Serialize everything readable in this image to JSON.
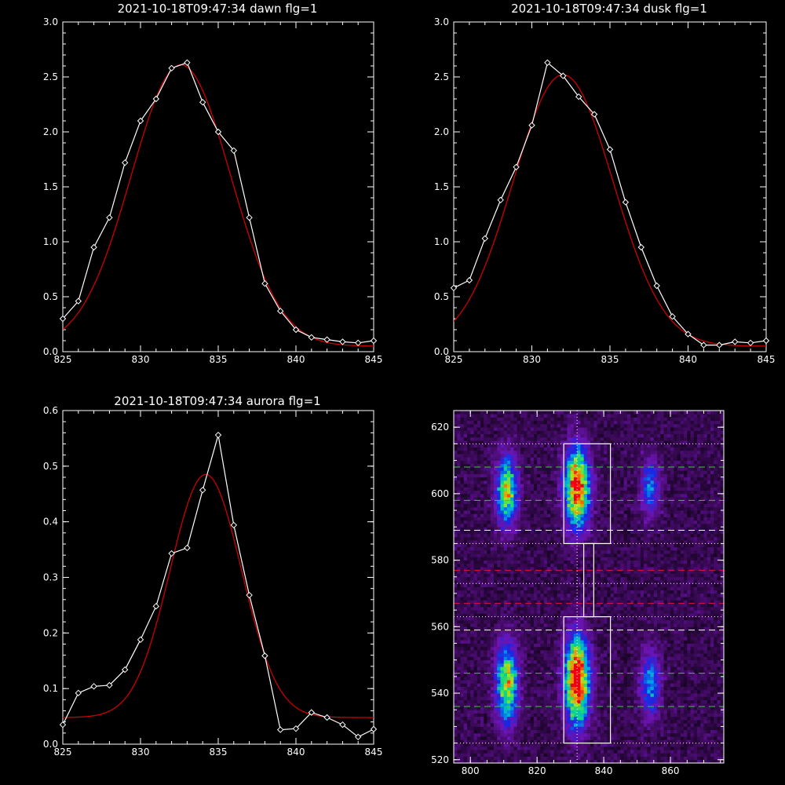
{
  "colors": {
    "background": "#000000",
    "data_line": "#ffffff",
    "fit_line": "#cc0000",
    "green_line": "#33cc33",
    "red_line": "#e0103a"
  },
  "chart_data": [
    {
      "type": "line",
      "title": "2021-10-18T09:47:34 dawn flg=1",
      "xlim": [
        825,
        845
      ],
      "ylim": [
        0,
        3
      ],
      "xticks": [
        "825",
        "830",
        "835",
        "840",
        "845"
      ],
      "yticks": [
        "0.0",
        "0.5",
        "1.0",
        "1.5",
        "2.0",
        "2.5",
        "3.0"
      ],
      "xticks_values": [
        825,
        830,
        835,
        840,
        845
      ],
      "yticks_values": [
        0,
        0.5,
        1,
        1.5,
        2,
        2.5,
        3
      ],
      "grid": false,
      "series": [
        {
          "style": "data-diamond",
          "color": "#ffffff",
          "x": [
            825,
            826,
            827,
            828,
            829,
            830,
            831,
            832,
            833,
            834,
            835,
            836,
            837,
            838,
            839,
            840,
            841,
            842,
            843,
            844,
            845
          ],
          "y": [
            0.3,
            0.46,
            0.95,
            1.22,
            1.72,
            2.1,
            2.3,
            2.58,
            2.63,
            2.27,
            2.0,
            1.83,
            1.22,
            0.62,
            0.37,
            0.2,
            0.13,
            0.11,
            0.09,
            0.08,
            0.1
          ]
        },
        {
          "style": "fit",
          "color": "#cc0000",
          "gaussian": {
            "amplitude": 2.56,
            "center": 832.6,
            "sigma": 3.2,
            "offset": 0.05
          }
        }
      ]
    },
    {
      "type": "line",
      "title": "2021-10-18T09:47:34 dusk flg=1",
      "xlim": [
        825,
        845
      ],
      "ylim": [
        0,
        3
      ],
      "xticks": [
        "825",
        "830",
        "835",
        "840",
        "845"
      ],
      "yticks": [
        "0.0",
        "0.5",
        "1.0",
        "1.5",
        "2.0",
        "2.5",
        "3.0"
      ],
      "xticks_values": [
        825,
        830,
        835,
        840,
        845
      ],
      "yticks_values": [
        0,
        0.5,
        1,
        1.5,
        2,
        2.5,
        3
      ],
      "grid": false,
      "series": [
        {
          "style": "data-diamond",
          "color": "#ffffff",
          "x": [
            825,
            826,
            827,
            828,
            829,
            830,
            831,
            832,
            833,
            834,
            835,
            836,
            837,
            838,
            839,
            840,
            841,
            842,
            843,
            844,
            845
          ],
          "y": [
            0.58,
            0.65,
            1.03,
            1.38,
            1.68,
            2.06,
            2.63,
            2.51,
            2.32,
            2.16,
            1.84,
            1.36,
            0.95,
            0.6,
            0.32,
            0.16,
            0.06,
            0.06,
            0.09,
            0.08,
            0.1
          ]
        },
        {
          "style": "fit",
          "color": "#cc0000",
          "gaussian": {
            "amplitude": 2.47,
            "center": 832.0,
            "sigma": 3.2,
            "offset": 0.05
          }
        }
      ]
    },
    {
      "type": "line",
      "title": "2021-10-18T09:47:34 aurora flg=1",
      "xlim": [
        825,
        845
      ],
      "ylim": [
        0,
        0.6
      ],
      "xticks": [
        "825",
        "830",
        "835",
        "840",
        "845"
      ],
      "yticks": [
        "0.0",
        "0.1",
        "0.2",
        "0.3",
        "0.4",
        "0.5",
        "0.6"
      ],
      "xticks_values": [
        825,
        830,
        835,
        840,
        845
      ],
      "yticks_values": [
        0,
        0.1,
        0.2,
        0.3,
        0.4,
        0.5,
        0.6
      ],
      "grid": false,
      "series": [
        {
          "style": "data-diamond",
          "color": "#ffffff",
          "x": [
            825,
            826,
            827,
            828,
            829,
            830,
            831,
            832,
            833,
            834,
            835,
            836,
            837,
            838,
            839,
            840,
            841,
            842,
            843,
            844,
            845
          ],
          "y": [
            0.035,
            0.092,
            0.104,
            0.106,
            0.134,
            0.188,
            0.248,
            0.343,
            0.353,
            0.457,
            0.556,
            0.394,
            0.268,
            0.159,
            0.026,
            0.028,
            0.057,
            0.048,
            0.035,
            0.013,
            0.027
          ]
        },
        {
          "style": "fit",
          "color": "#cc0000",
          "gaussian": {
            "amplitude": 0.437,
            "center": 834.2,
            "sigma": 2.3,
            "offset": 0.048
          }
        }
      ]
    },
    {
      "type": "heatmap",
      "title": "",
      "xlim": [
        795,
        876
      ],
      "ylim": [
        519,
        625
      ],
      "xticks": [
        "800",
        "820",
        "840",
        "860"
      ],
      "yticks": [
        "520",
        "540",
        "560",
        "580",
        "600",
        "620"
      ],
      "xticks_values": [
        800,
        820,
        840,
        860
      ],
      "yticks_values": [
        520,
        540,
        560,
        580,
        600,
        620
      ],
      "colormap": "rainbow",
      "blobs": [
        {
          "x": 811,
          "y": 601,
          "sx": 2.2,
          "sy": 7,
          "amp": 0.65
        },
        {
          "x": 832,
          "y": 602,
          "sx": 2.5,
          "sy": 8,
          "amp": 0.95
        },
        {
          "x": 854,
          "y": 602,
          "sx": 2.0,
          "sy": 6,
          "amp": 0.35
        },
        {
          "x": 811,
          "y": 543,
          "sx": 2.2,
          "sy": 8,
          "amp": 0.7
        },
        {
          "x": 832,
          "y": 544,
          "sx": 2.5,
          "sy": 9,
          "amp": 1.0
        },
        {
          "x": 854,
          "y": 543,
          "sx": 2.0,
          "sy": 7,
          "amp": 0.4
        }
      ],
      "boxes": [
        {
          "x0": 828,
          "x1": 842,
          "y0": 585,
          "y1": 615
        },
        {
          "x0": 834,
          "x1": 837,
          "y0": 563,
          "y1": 585
        },
        {
          "x0": 828,
          "x1": 842,
          "y0": 525,
          "y1": 563
        }
      ],
      "vlines": [
        {
          "x": 832,
          "style": "dotted",
          "color": "#ffffff"
        }
      ],
      "hlines": [
        {
          "y": 615,
          "style": "dotted",
          "color": "#ffffff"
        },
        {
          "y": 608,
          "style": "dashed",
          "color": "#33cc33"
        },
        {
          "y": 598,
          "style": "dashed",
          "color": "#33cc33"
        },
        {
          "y": 589,
          "style": "dashed",
          "color": "#ffffff"
        },
        {
          "y": 585,
          "style": "dotted",
          "color": "#ffffff"
        },
        {
          "y": 577,
          "style": "dashed",
          "color": "#e0103a"
        },
        {
          "y": 573,
          "style": "dotted",
          "color": "#ffffff"
        },
        {
          "y": 567,
          "style": "dashed",
          "color": "#e0103a"
        },
        {
          "y": 563,
          "style": "dotted",
          "color": "#ffffff"
        },
        {
          "y": 559,
          "style": "dashed",
          "color": "#ffffff"
        },
        {
          "y": 546,
          "style": "dashed",
          "color": "#33cc33"
        },
        {
          "y": 536,
          "style": "dashed",
          "color": "#33cc33"
        },
        {
          "y": 525,
          "style": "dotted",
          "color": "#ffffff"
        }
      ]
    }
  ]
}
